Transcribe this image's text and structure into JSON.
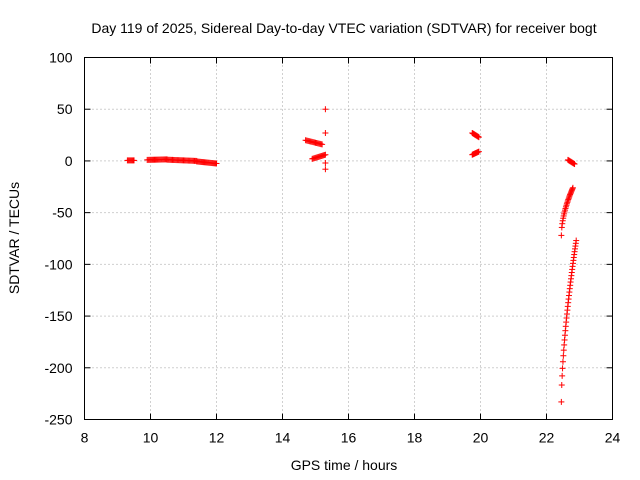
{
  "chart_data": {
    "type": "scatter",
    "title": "Day 119 of 2025, Sidereal Day-to-day VTEC variation (SDTVAR) for receiver bogt",
    "xlabel": "GPS time / hours",
    "ylabel": "SDTVAR / TECUs",
    "xlim": [
      8,
      24
    ],
    "ylim": [
      -250,
      100
    ],
    "xticks": [
      8,
      10,
      12,
      14,
      16,
      18,
      20,
      22,
      24
    ],
    "yticks": [
      100,
      50,
      0,
      -50,
      -100,
      -150,
      -200,
      -250
    ],
    "grid": true,
    "marker": "+",
    "color": "#ff0000",
    "segments": [
      {
        "x0": 9.3,
        "x1": 9.5,
        "y0": 0.5,
        "y1": 0.5,
        "n": 8
      },
      {
        "x0": 9.9,
        "x1": 10.5,
        "y0": 1.0,
        "y1": 1.5,
        "n": 20
      },
      {
        "x0": 10.5,
        "x1": 11.4,
        "y0": 1.2,
        "y1": 0.0,
        "n": 28
      },
      {
        "x0": 11.4,
        "x1": 12.0,
        "y0": -0.5,
        "y1": -2.5,
        "n": 20
      },
      {
        "x0": 14.7,
        "x1": 15.2,
        "y0": 20,
        "y1": 16,
        "n": 16
      },
      {
        "x0": 14.9,
        "x1": 15.3,
        "y0": 2,
        "y1": 6,
        "n": 14
      },
      {
        "x0": 19.75,
        "x1": 19.95,
        "y0": 27,
        "y1": 23,
        "n": 10
      },
      {
        "x0": 19.75,
        "x1": 19.95,
        "y0": 6,
        "y1": 9,
        "n": 10
      },
      {
        "x0": 22.65,
        "x1": 22.85,
        "y0": 1,
        "y1": -3,
        "n": 10
      },
      {
        "x0": 22.45,
        "x1": 22.8,
        "y0": -72,
        "y1": -26,
        "n": 26,
        "curve": 1.8
      },
      {
        "x0": 22.45,
        "x1": 22.9,
        "y0": -233,
        "y1": -77,
        "n": 38,
        "curve": 1.6
      }
    ],
    "outliers": [
      {
        "x": 15.3,
        "y": 50
      },
      {
        "x": 15.3,
        "y": 27
      },
      {
        "x": 15.3,
        "y": -8
      },
      {
        "x": 15.3,
        "y": -2
      }
    ]
  }
}
